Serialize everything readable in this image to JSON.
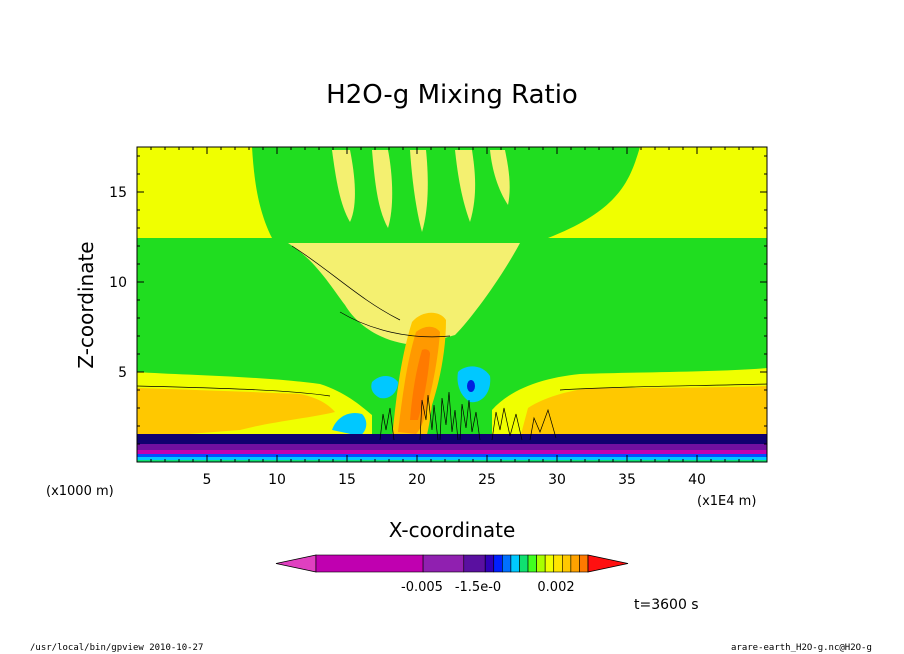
{
  "chart_data": {
    "type": "heatmap",
    "title": "H2O-g Mixing Ratio",
    "xlabel": "X-coordinate",
    "ylabel": "Z-coordinate",
    "x_ticks": [
      5,
      10,
      15,
      20,
      25,
      30,
      35,
      40
    ],
    "y_ticks": [
      5,
      10,
      15
    ],
    "xlim": [
      0,
      45
    ],
    "ylim": [
      0,
      17.5
    ],
    "x_units_left": "(x1000 m)",
    "x_units_right": "(x1E4 m)",
    "colorbar_labels": [
      "-0.005",
      "-1.5e-0",
      "0.002"
    ],
    "colorbar_colors": [
      "#e040c0",
      "#c000b0",
      "#9020b0",
      "#5a10a0",
      "#3000b8",
      "#0020ff",
      "#0070ff",
      "#00c8ff",
      "#10e070",
      "#40ff20",
      "#a8ff00",
      "#f0ff00",
      "#ffe400",
      "#ffc800",
      "#ffa200",
      "#ff7a00",
      "#ff1010"
    ],
    "time_label": "t=3600 s"
  },
  "colors": {
    "green": "#20dd20",
    "yellow": "#f0ff00",
    "pale": "#f4f070",
    "gold": "#ffc800",
    "orange": "#ff9900",
    "cyan": "#00c8ff",
    "blue": "#0040e0",
    "purple": "#7010a0",
    "navy": "#100070"
  },
  "footer": {
    "left": "/usr/local/bin/gpview  2010-10-27",
    "right": "arare-earth_H2O-g.nc@H2O-g"
  }
}
